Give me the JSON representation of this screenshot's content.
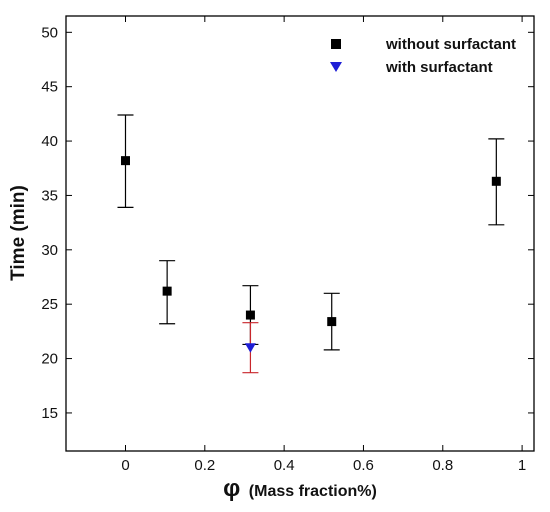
{
  "chart_data": {
    "type": "scatter",
    "title": "",
    "xlabel_symbol": "φ",
    "xlabel_text": "(Mass fraction%)",
    "ylabel": "Time (min)",
    "xlim": [
      -0.15,
      1.03
    ],
    "ylim": [
      11.5,
      51.5
    ],
    "xticks": [
      0,
      0.2,
      0.4,
      0.6,
      0.8,
      1
    ],
    "xtick_labels": [
      "0",
      "0.2",
      "0.4",
      "0.6",
      "0.8",
      "1"
    ],
    "yticks": [
      15,
      20,
      25,
      30,
      35,
      40,
      45,
      50
    ],
    "ytick_labels": [
      "15",
      "20",
      "25",
      "30",
      "35",
      "40",
      "45",
      "50"
    ],
    "grid": false,
    "legend_position": "top-right",
    "series": [
      {
        "name": "without surfactant",
        "marker": "square",
        "color": "#000000",
        "errorbar_color": "#000000",
        "points": [
          {
            "x": 0.0,
            "y": 38.2,
            "lo": 33.9,
            "hi": 42.4
          },
          {
            "x": 0.105,
            "y": 26.2,
            "lo": 23.2,
            "hi": 29.0
          },
          {
            "x": 0.315,
            "y": 24.0,
            "lo": 21.3,
            "hi": 26.7
          },
          {
            "x": 0.52,
            "y": 23.4,
            "lo": 20.8,
            "hi": 26.0
          },
          {
            "x": 0.935,
            "y": 36.3,
            "lo": 32.3,
            "hi": 40.2
          }
        ]
      },
      {
        "name": "with surfactant",
        "marker": "triangle-down",
        "color": "#1f1fd6",
        "errorbar_color": "#c8262b",
        "points": [
          {
            "x": 0.315,
            "y": 21.0,
            "lo": 18.7,
            "hi": 23.3
          }
        ]
      }
    ]
  }
}
